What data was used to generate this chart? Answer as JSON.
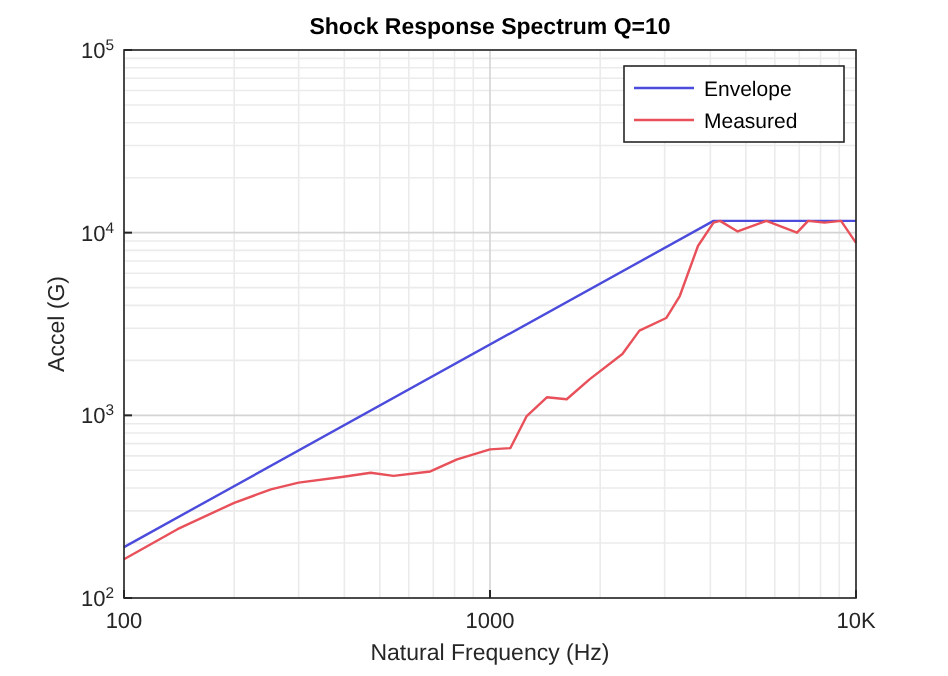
{
  "chart_data": {
    "type": "line",
    "title": "Shock Response Spectrum Q=10",
    "xlabel": "Natural Frequency (Hz)",
    "ylabel": "Accel (G)",
    "log": "xy",
    "grid": true,
    "legend": "top right",
    "xlim": [
      100,
      10000
    ],
    "xticks": [
      100,
      1000,
      {
        "value": 10000,
        "label": "10K"
      }
    ],
    "ylim": [
      100,
      100000
    ],
    "yticks": [
      {
        "value": 100,
        "label": "10$^{2}$"
      },
      {
        "value": 1000,
        "label": "10$^{3}$"
      },
      {
        "value": 10000,
        "label": "10$^{4}$"
      },
      {
        "value": 100000,
        "label": "10$^{5}$"
      }
    ],
    "series": [
      {
        "name": "Envelope",
        "color": "#4b4bdc",
        "x": [
          100,
          4080,
          10000
        ],
        "values": [
          190,
          11600,
          11600
        ]
      },
      {
        "name": "Measured",
        "color": "#e8505a",
        "x": [
          100,
          140,
          200,
          252,
          300,
          398,
          472,
          545,
          687,
          813,
          1000,
          1137,
          1260,
          1430,
          1620,
          1870,
          2300,
          2560,
          3030,
          3300,
          3700,
          4080,
          4250,
          4750,
          5690,
          6900,
          7400,
          8200,
          9100,
          10000
        ],
        "values": [
          163,
          238,
          332,
          393,
          428,
          461,
          485,
          466,
          493,
          574,
          651,
          662,
          991,
          1256,
          1225,
          1573,
          2166,
          2910,
          3410,
          4500,
          8450,
          11350,
          11600,
          10150,
          11600,
          10000,
          11600,
          11350,
          11600,
          8800
        ]
      }
    ]
  }
}
